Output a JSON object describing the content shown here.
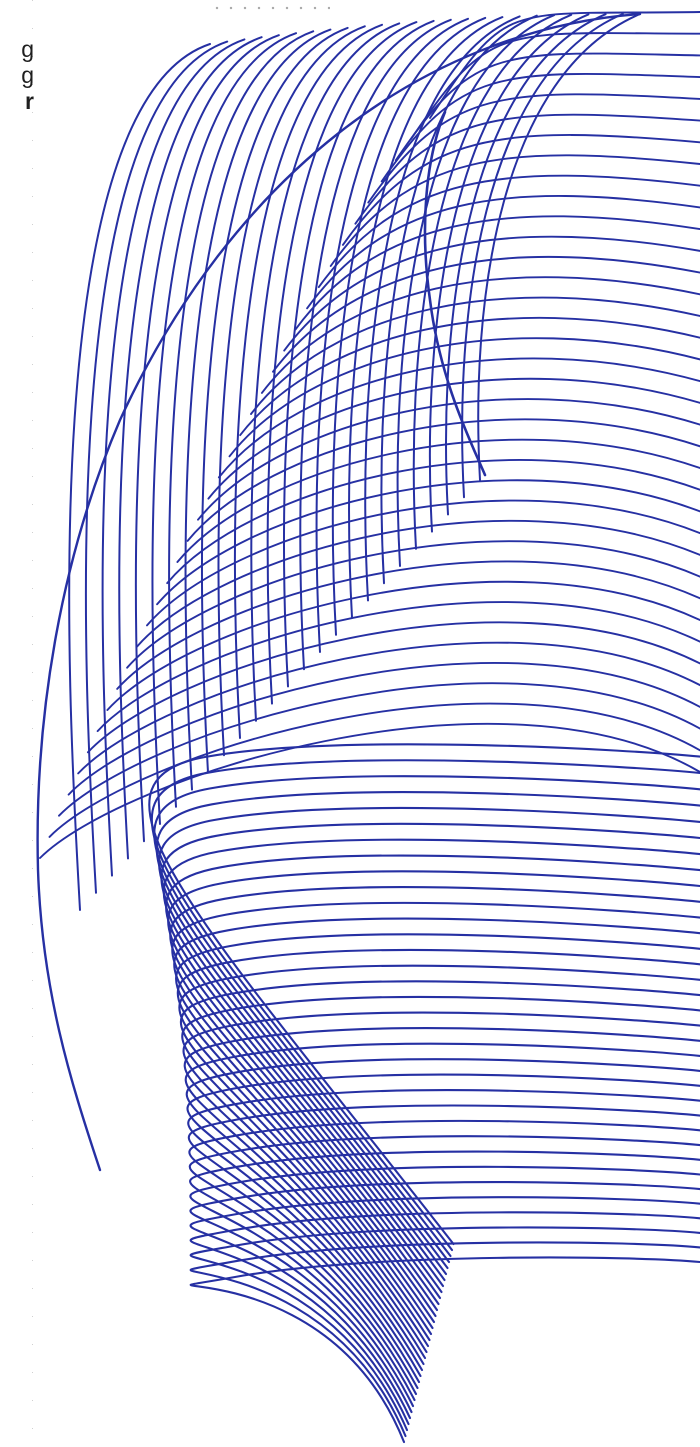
{
  "side_text": {
    "line1": "g",
    "line2": "g",
    "line3": "r"
  },
  "pattern": {
    "stroke_color": "#2630a3",
    "background_color": "#ffffff"
  }
}
